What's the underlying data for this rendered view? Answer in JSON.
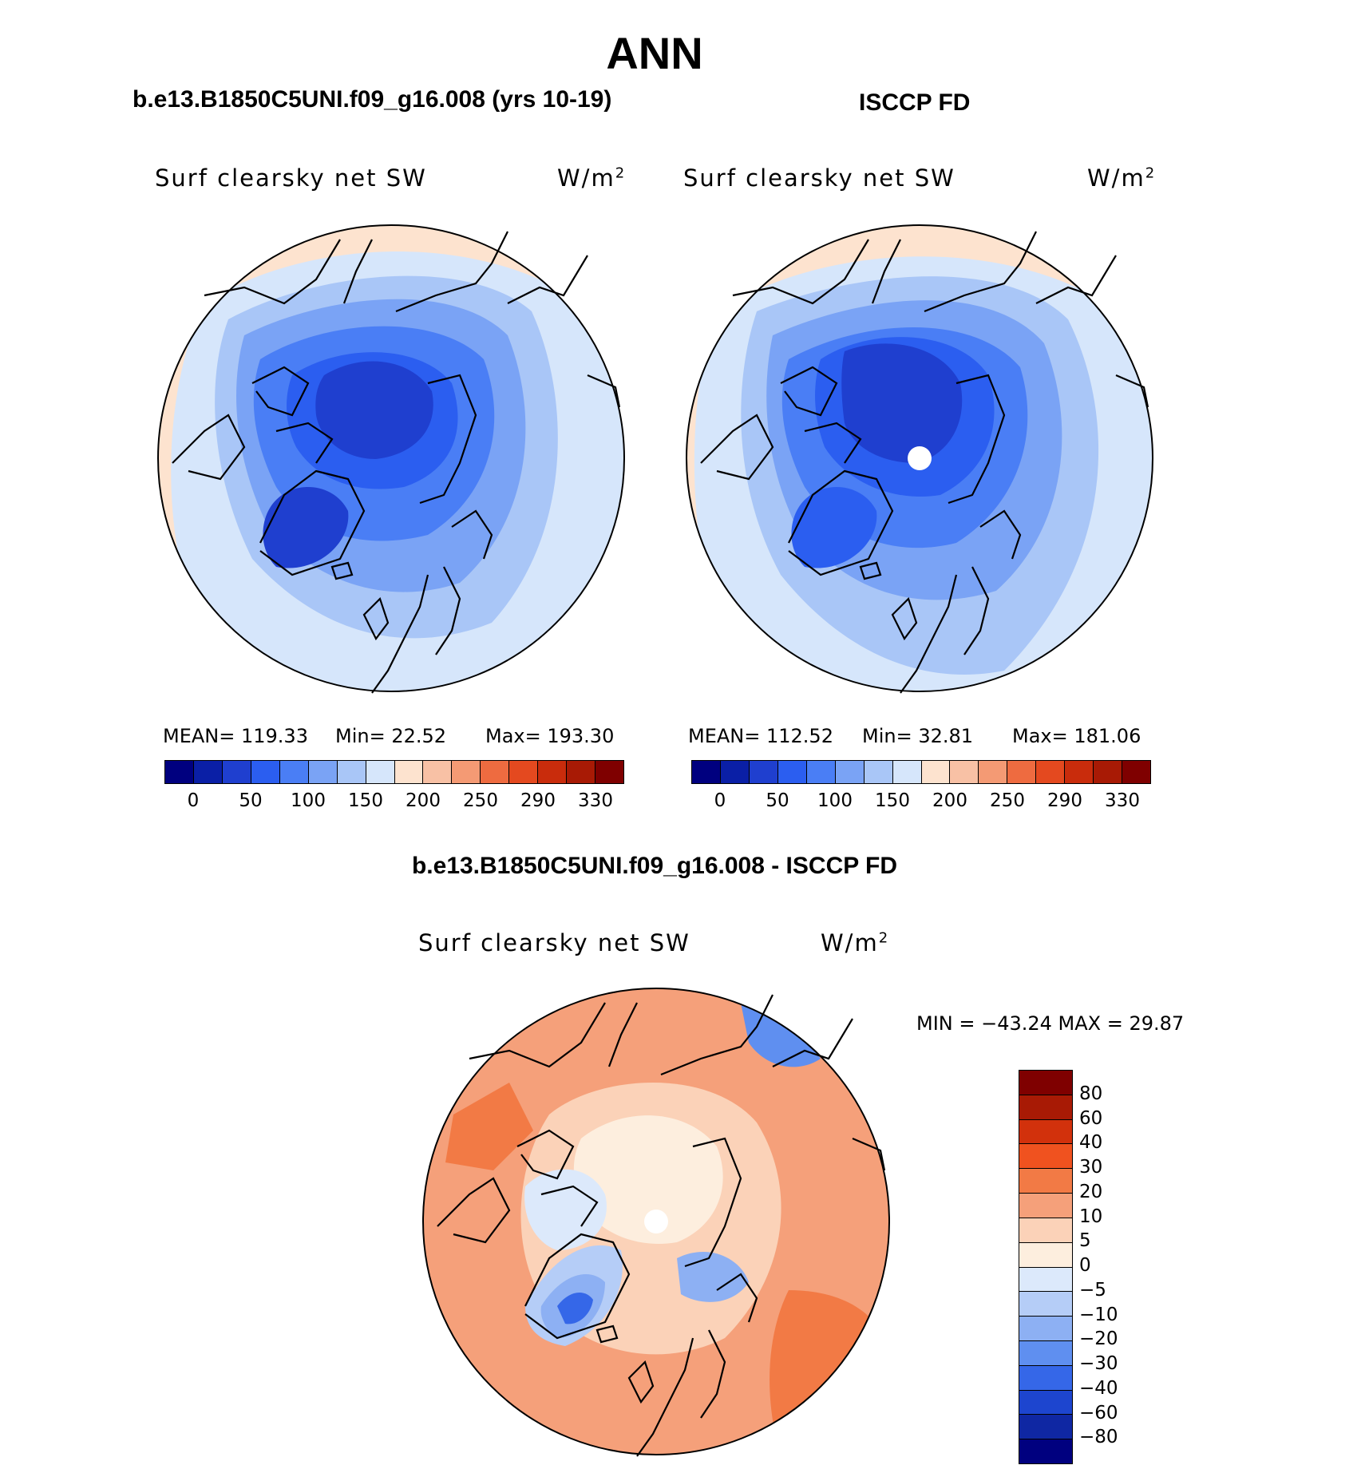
{
  "page": {
    "title": "ANN",
    "diff_title": "b.e13.B1850C5UNI.f09_g16.008 - ISCCP FD"
  },
  "chart_data": [
    {
      "type": "heatmap",
      "projection": "north-polar-stereographic",
      "case_title": "b.e13.B1850C5UNI.f09_g16.008 (yrs 10-19)",
      "field": "Surf clearsky net SW",
      "units_base": "W/m",
      "units_exp": "2",
      "stats": {
        "mean": "MEAN=  119.33",
        "min": "Min=   22.52",
        "max": "Max=  193.30"
      },
      "levels": [
        "0",
        "50",
        "100",
        "150",
        "200",
        "250",
        "290",
        "330"
      ],
      "colors": [
        "#00007f",
        "#0a1fa6",
        "#1f3fcf",
        "#2b5ef0",
        "#4a7ef5",
        "#7aa3f5",
        "#a9c6f7",
        "#d6e6fb",
        "#fde3cf",
        "#f8c1a5",
        "#f49a74",
        "#ee6b40",
        "#e4491f",
        "#c92c0c",
        "#a81a05",
        "#7f0000"
      ],
      "fill_zones": [
        {
          "level": "~45",
          "color": "#1f3fcf"
        },
        {
          "level": "~80",
          "color": "#2b5ef0"
        },
        {
          "level": "~110",
          "color": "#4a7ef5"
        },
        {
          "level": "~135",
          "color": "#7aa3f5"
        },
        {
          "level": "~155",
          "color": "#a9c6f7"
        },
        {
          "level": "~175",
          "color": "#d6e6fb"
        },
        {
          "level": "~190",
          "color": "#fde3cf"
        }
      ]
    },
    {
      "type": "heatmap",
      "projection": "north-polar-stereographic",
      "case_title": "ISCCP FD",
      "field": "Surf clearsky net SW",
      "units_base": "W/m",
      "units_exp": "2",
      "stats": {
        "mean": "MEAN=  112.52",
        "min": "Min=   32.81",
        "max": "Max=  181.06"
      },
      "levels": [
        "0",
        "50",
        "100",
        "150",
        "200",
        "250",
        "290",
        "330"
      ],
      "colors": [
        "#00007f",
        "#0a1fa6",
        "#1f3fcf",
        "#2b5ef0",
        "#4a7ef5",
        "#7aa3f5",
        "#a9c6f7",
        "#d6e6fb",
        "#fde3cf",
        "#f8c1a5",
        "#f49a74",
        "#ee6b40",
        "#e4491f",
        "#c92c0c",
        "#a81a05",
        "#7f0000"
      ],
      "fill_zones": [
        {
          "level": "~50",
          "color": "#1f3fcf"
        },
        {
          "level": "~85",
          "color": "#2b5ef0"
        },
        {
          "level": "~115",
          "color": "#4a7ef5"
        },
        {
          "level": "~140",
          "color": "#7aa3f5"
        },
        {
          "level": "~165",
          "color": "#a9c6f7"
        },
        {
          "level": "~180",
          "color": "#d6e6fb"
        }
      ]
    },
    {
      "type": "heatmap",
      "projection": "north-polar-stereographic",
      "field": "Surf clearsky net SW",
      "units_base": "W/m",
      "units_exp": "2",
      "minmax": "MIN = −43.24 MAX =   29.87",
      "levels": [
        "80",
        "60",
        "40",
        "30",
        "20",
        "10",
        "5",
        "0",
        "−5",
        "−10",
        "−20",
        "−30",
        "−40",
        "−60",
        "−80"
      ],
      "colors": [
        "#7f0000",
        "#a81a05",
        "#d2310c",
        "#f0521f",
        "#f27a45",
        "#f5a07a",
        "#fbd2b8",
        "#fdeede",
        "#dce9fb",
        "#b5cdf7",
        "#8db0f3",
        "#5f8ff0",
        "#3567e8",
        "#1d45cf",
        "#0f27a3",
        "#00007f"
      ],
      "fill_zones": [
        {
          "level": "~10",
          "color": "#f5a07a"
        },
        {
          "level": "~20",
          "color": "#f27a45"
        },
        {
          "level": "~5",
          "color": "#fbd2b8"
        },
        {
          "level": "~0",
          "color": "#fdeede"
        },
        {
          "level": "~-5",
          "color": "#dce9fb"
        },
        {
          "level": "~-10",
          "color": "#b5cdf7"
        },
        {
          "level": "~-20",
          "color": "#8db0f3"
        },
        {
          "level": "~-30",
          "color": "#5f8ff0"
        },
        {
          "level": "~-40",
          "color": "#3567e8"
        }
      ]
    }
  ]
}
